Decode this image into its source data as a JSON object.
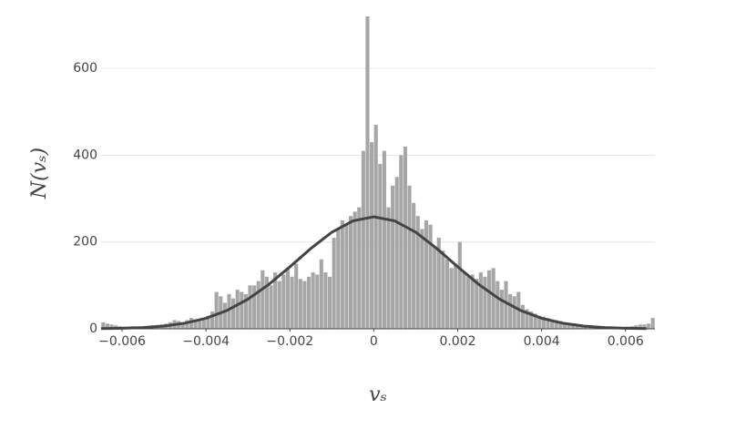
{
  "chart_data": {
    "type": "histogram",
    "x_label": "vₛ",
    "y_label": "N(vₛ)",
    "bins": [
      -0.0065,
      -0.0064,
      -0.0063,
      -0.0062,
      -0.0061,
      -0.006,
      -0.0059,
      -0.0058,
      -0.0057,
      -0.0056,
      -0.0055,
      -0.0054,
      -0.0053,
      -0.0052,
      -0.0051,
      -0.005,
      -0.0049,
      -0.0048,
      -0.0047,
      -0.0046,
      -0.0045,
      -0.0044,
      -0.0043,
      -0.0042,
      -0.0041,
      -0.004,
      -0.0039,
      -0.0038,
      -0.0037,
      -0.0036,
      -0.0035,
      -0.0034,
      -0.0033,
      -0.0032,
      -0.0031,
      -0.003,
      -0.0029,
      -0.0028,
      -0.0027,
      -0.0026,
      -0.0025,
      -0.0024,
      -0.0023,
      -0.0022,
      -0.0021,
      -0.002,
      -0.0019,
      -0.0018,
      -0.0017,
      -0.0016,
      -0.0015,
      -0.0014,
      -0.0013,
      -0.0012,
      -0.0011,
      -0.001,
      -0.0009,
      -0.0008,
      -0.0007,
      -0.0006,
      -0.0005,
      -0.0004,
      -0.0003,
      -0.0002,
      -0.0001,
      0,
      0.0001,
      0.0002,
      0.0003,
      0.0004,
      0.0005,
      0.0006,
      0.0007,
      0.0008,
      0.0009,
      0.001,
      0.0011,
      0.0012,
      0.0013,
      0.0014,
      0.0015,
      0.0016,
      0.0017,
      0.0018,
      0.0019,
      0.002,
      0.0021,
      0.0022,
      0.0023,
      0.0024,
      0.0025,
      0.0026,
      0.0027,
      0.0028,
      0.0029,
      0.003,
      0.0031,
      0.0032,
      0.0033,
      0.0034,
      0.0035,
      0.0036,
      0.0037,
      0.0038,
      0.0039,
      0.004,
      0.0041,
      0.0042,
      0.0043,
      0.0044,
      0.0045,
      0.0046,
      0.0047,
      0.0048,
      0.0049,
      0.005,
      0.0051,
      0.0052,
      0.0053,
      0.0054,
      0.0055,
      0.0056,
      0.0057,
      0.0058,
      0.0059,
      0.006,
      0.0061,
      0.0062,
      0.0063,
      0.0064,
      0.0065,
      0.0066,
      0.0067
    ],
    "counts": [
      15,
      12,
      10,
      8,
      6,
      5,
      5,
      6,
      4,
      5,
      6,
      7,
      8,
      9,
      10,
      12,
      15,
      20,
      18,
      15,
      20,
      25,
      22,
      18,
      20,
      30,
      40,
      85,
      75,
      60,
      80,
      70,
      90,
      85,
      80,
      100,
      100,
      110,
      135,
      120,
      100,
      130,
      110,
      125,
      140,
      120,
      150,
      115,
      110,
      120,
      130,
      125,
      160,
      130,
      120,
      210,
      230,
      250,
      240,
      260,
      270,
      280,
      410,
      720,
      430,
      470,
      380,
      410,
      280,
      330,
      350,
      400,
      420,
      330,
      290,
      260,
      230,
      250,
      240,
      190,
      210,
      180,
      160,
      140,
      150,
      200,
      130,
      120,
      125,
      115,
      130,
      120,
      135,
      140,
      110,
      90,
      110,
      80,
      75,
      85,
      55,
      45,
      40,
      35,
      30,
      28,
      25,
      22,
      20,
      18,
      15,
      12,
      10,
      8,
      8,
      6,
      5,
      5,
      4,
      5,
      4,
      3,
      5,
      4,
      3,
      5,
      6,
      8,
      10,
      10,
      12,
      25
    ],
    "color": "#a6a6a6",
    "curve": {
      "color": "#444444",
      "x": [
        -0.0065,
        -0.006,
        -0.0055,
        -0.005,
        -0.0045,
        -0.004,
        -0.0035,
        -0.003,
        -0.0025,
        -0.002,
        -0.0015,
        -0.001,
        -0.0005,
        0,
        0.0005,
        0.001,
        0.0015,
        0.002,
        0.0025,
        0.003,
        0.0035,
        0.004,
        0.0045,
        0.005,
        0.0055,
        0.006,
        0.0065
      ],
      "values": [
        0.5,
        1.3,
        3.0,
        6.4,
        13.0,
        24.3,
        42.3,
        68.3,
        102.5,
        142.9,
        185.1,
        222.6,
        248.6,
        258,
        248.6,
        222.6,
        185.1,
        142.9,
        102.5,
        68.3,
        42.3,
        24.3,
        13.0,
        6.4,
        3.0,
        1.3,
        0.5
      ]
    },
    "xlim": [
      -0.0065,
      0.0067
    ],
    "ylim": [
      0,
      720
    ],
    "xticks": [
      {
        "value": -0.006,
        "label": "−0.006"
      },
      {
        "value": -0.004,
        "label": "−0.004"
      },
      {
        "value": -0.002,
        "label": "−0.002"
      },
      0,
      0.002,
      0.004,
      0.006
    ],
    "yticks": [
      0,
      200,
      400,
      600
    ],
    "grid": true
  }
}
